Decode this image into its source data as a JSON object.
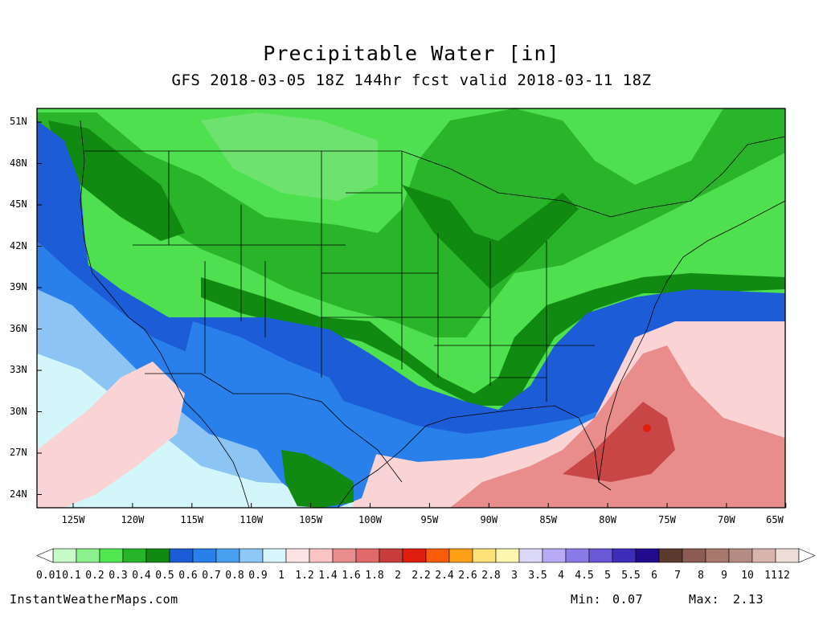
{
  "title": "Precipitable Water [in]",
  "subtitle": "GFS 2018-03-05 18Z 144hr fcst valid 2018-03-11 18Z",
  "colors": {
    "frame": "#000000",
    "map_background": "#4ee04e",
    "field_regions": [
      {
        "name": "light-green-north",
        "level": "0.2",
        "color": "#4ee04e"
      },
      {
        "name": "mid-green-band",
        "level": "0.3",
        "color": "#2ab42a"
      },
      {
        "name": "dark-green-band",
        "level": "0.4",
        "color": "#108a10"
      },
      {
        "name": "pale-green-patches",
        "level": "0.1",
        "color": "#6ee26e"
      },
      {
        "name": "blue-west-ocean",
        "level": "0.5",
        "color": "#1c5cd6"
      },
      {
        "name": "blue-mid-band",
        "level": "0.6",
        "color": "#2a80ea"
      },
      {
        "name": "light-blue-band",
        "level": "0.8",
        "color": "#8cc4f4"
      },
      {
        "name": "cyan-band",
        "level": "0.9",
        "color": "#d2f6fa"
      },
      {
        "name": "pink-band",
        "level": "1.2",
        "color": "#fad4d4"
      },
      {
        "name": "rose-band",
        "level": "1.4",
        "color": "#e88c8c"
      },
      {
        "name": "red-core",
        "level": "1.8",
        "color": "#c84646"
      }
    ]
  },
  "lat_labels": [
    "51N",
    "48N",
    "45N",
    "42N",
    "39N",
    "36N",
    "33N",
    "30N",
    "27N",
    "24N"
  ],
  "lon_labels": [
    "125W",
    "120W",
    "115W",
    "110W",
    "105W",
    "100W",
    "95W",
    "90W",
    "85W",
    "80W",
    "75W",
    "70W",
    "65W"
  ],
  "colorbar": {
    "labels": [
      "0.01",
      "0.1",
      "0.2",
      "0.3",
      "0.4",
      "0.5",
      "0.6",
      "0.7",
      "0.8",
      "0.9",
      "1",
      "1.2",
      "1.4",
      "1.6",
      "1.8",
      "2",
      "2.2",
      "2.4",
      "2.6",
      "2.8",
      "3",
      "3.5",
      "4",
      "4.5",
      "5",
      "5.5",
      "6",
      "7",
      "8",
      "9",
      "10",
      "11",
      "12"
    ],
    "colors": [
      "#c8fac8",
      "#8cf08c",
      "#50e650",
      "#28b428",
      "#108a10",
      "#1c5cd6",
      "#2a80ea",
      "#4aa0f0",
      "#8cc8f8",
      "#d6f6fc",
      "#fde4e4",
      "#fac4c4",
      "#e88c8c",
      "#e06a6a",
      "#c83c3c",
      "#e01e10",
      "#f85c0a",
      "#fca016",
      "#fce278",
      "#fcf6b0",
      "#dcd8f8",
      "#b8aaf4",
      "#8a7ae8",
      "#6a58d4",
      "#3c2cb8",
      "#220a8c",
      "#5c3a30",
      "#8c5c54",
      "#a8786c",
      "#b48c84",
      "#d8b4ac",
      "#eedcd6"
    ]
  },
  "footer": {
    "site": "InstantWeatherMaps.com",
    "min_label": "Min:",
    "min_value": "0.07",
    "max_label": "Max:",
    "max_value": "2.13"
  }
}
